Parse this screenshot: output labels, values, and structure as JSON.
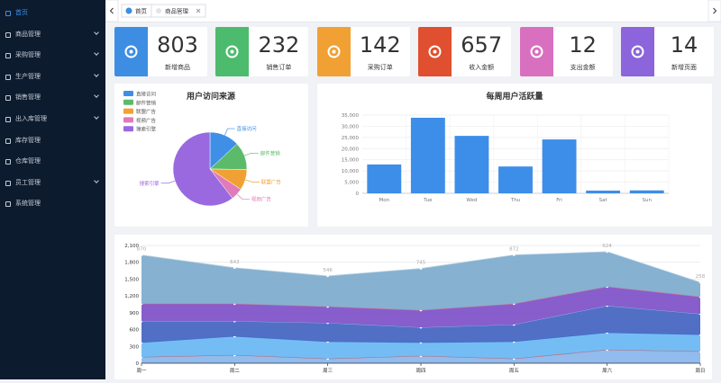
{
  "sidebar": {
    "active": 0,
    "items": [
      {
        "label": "首页",
        "submenu": false
      },
      {
        "label": "商品管理",
        "submenu": true
      },
      {
        "label": "采购管理",
        "submenu": true
      },
      {
        "label": "生产管理",
        "submenu": true
      },
      {
        "label": "销售管理",
        "submenu": true
      },
      {
        "label": "出入库管理",
        "submenu": true
      },
      {
        "label": "库存管理",
        "submenu": false
      },
      {
        "label": "仓库管理",
        "submenu": false
      },
      {
        "label": "员工管理",
        "submenu": true
      },
      {
        "label": "系统管理",
        "submenu": false
      }
    ]
  },
  "tabs": [
    "首页",
    "商品管理"
  ],
  "stats": [
    {
      "value": "803",
      "label": "新增商品",
      "color": "#3d8ee3"
    },
    {
      "value": "232",
      "label": "销售订单",
      "color": "#4dbb6d"
    },
    {
      "value": "142",
      "label": "采购订单",
      "color": "#f1a134"
    },
    {
      "value": "657",
      "label": "收入金额",
      "color": "#e04f2f"
    },
    {
      "value": "12",
      "label": "支出金额",
      "color": "#d870bf"
    },
    {
      "value": "14",
      "label": "新增页面",
      "color": "#8c64db"
    }
  ],
  "chart_data": [
    {
      "type": "pie",
      "title": "用户访问来源",
      "categories": [
        "直接访问",
        "邮件营销",
        "联盟广告",
        "视频广告",
        "搜索引擎"
      ],
      "values": [
        335,
        310,
        234,
        135,
        1548
      ],
      "colors": [
        "#3f8fe6",
        "#5bbb6a",
        "#f1a134",
        "#e07ab8",
        "#9a69e0"
      ],
      "legend": "top-left"
    },
    {
      "type": "bar",
      "title": "每周用户活跃量",
      "categories": [
        "Mon",
        "Tue",
        "Wed",
        "Thu",
        "Fri",
        "Sat",
        "Sun"
      ],
      "values": [
        12900,
        33800,
        25700,
        12000,
        24100,
        1200,
        1300
      ],
      "color": "#3d8ee8",
      "ylim": [
        0,
        35000
      ],
      "yticks": [
        0,
        {
          "value": 5000,
          "label": "5,000"
        },
        {
          "value": 10000,
          "label": "10,000"
        },
        {
          "value": 15000,
          "label": "15,000"
        },
        {
          "value": 20000,
          "label": "20,000"
        },
        {
          "value": 25000,
          "label": "25,000"
        },
        {
          "value": 30000,
          "label": "30,000"
        },
        {
          "value": 35000,
          "label": "35,000"
        }
      ],
      "grid": true
    },
    {
      "type": "stacked-area",
      "categories": [
        "周一",
        "周二",
        "周三",
        "周四",
        "周五",
        "周六",
        "周日"
      ],
      "ylim": [
        0,
        2100
      ],
      "yticks": [
        0,
        300,
        600,
        900,
        {
          "value": 1200,
          "label": "1,200"
        },
        {
          "value": 1500,
          "label": "1,500"
        },
        {
          "value": 1800,
          "label": "1,800"
        },
        {
          "value": 2100,
          "label": "2,100"
        }
      ],
      "grid": true,
      "series": [
        {
          "color": "#86b4ec",
          "line": "#d9534f",
          "values": [
            110,
            145,
            80,
            130,
            80,
            240,
            210
          ]
        },
        {
          "color": "#65b6f3",
          "line": "#4a7fd0",
          "values": [
            260,
            335,
            305,
            240,
            305,
            305,
            300
          ]
        },
        {
          "color": "#3f5fc0",
          "line": "#9fb7e6",
          "values": [
            380,
            270,
            335,
            270,
            305,
            480,
            370
          ]
        },
        {
          "color": "#7a4dc6",
          "line": "#e0708a",
          "values": [
            310,
            310,
            290,
            305,
            370,
            340,
            305
          ]
        },
        {
          "color": "#7aa8cb",
          "line": "#b9d3e6",
          "values": [
            870,
            643,
            546,
            745,
            872,
            624,
            258
          ],
          "show_labels": true
        }
      ]
    }
  ]
}
